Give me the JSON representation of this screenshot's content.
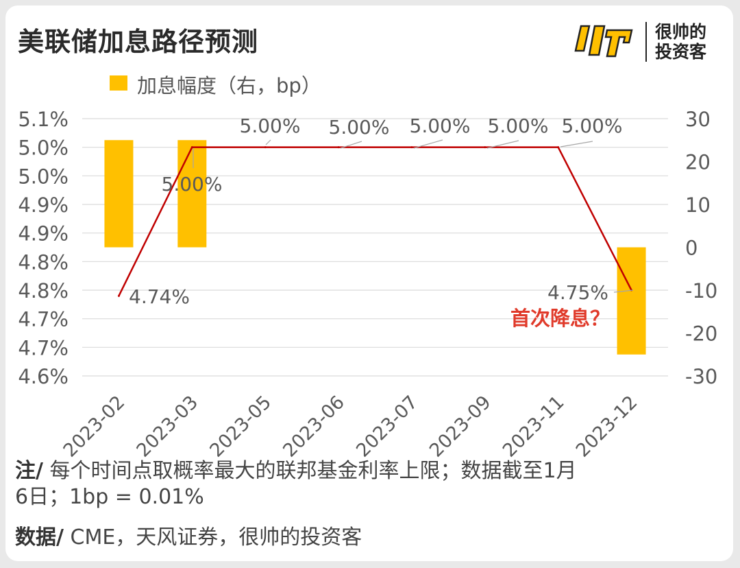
{
  "title": "美联储加息路径预测",
  "brand": {
    "line1": "很帅的",
    "line2": "投资客",
    "logo_color": "#FFC000"
  },
  "legend": {
    "label": "加息幅度（右，bp）"
  },
  "note": {
    "label": "注/",
    "text_line1": " 每个时间点取概率最大的联邦基金利率上限；数据截至1月",
    "text_line2": "6日；1bp = 0.01%"
  },
  "source": {
    "label": "数据/",
    "text": " CME，天风证券，很帅的投资客"
  },
  "chart_data": {
    "type": "bar+line",
    "categories": [
      "2023-02",
      "2023-03",
      "2023-05",
      "2023-06",
      "2023-07",
      "2023-09",
      "2023-11",
      "2023-12"
    ],
    "bar_series": {
      "name": "加息幅度（右，bp）",
      "values": [
        25,
        25,
        null,
        null,
        null,
        null,
        null,
        -25
      ],
      "color": "#FFC000",
      "axis": "right"
    },
    "line_series": {
      "values": [
        4.74,
        5.0,
        5.0,
        5.0,
        5.0,
        5.0,
        5.0,
        4.75
      ],
      "labels": [
        "4.74%",
        "5.00%",
        "5.00%",
        "5.00%",
        "5.00%",
        "5.00%",
        "5.00%",
        "4.75%"
      ],
      "color": "#C00000",
      "axis": "left"
    },
    "y_left": {
      "ticks": [
        "5.1%",
        "5.0%",
        "5.0%",
        "4.9%",
        "4.9%",
        "4.8%",
        "4.8%",
        "4.7%",
        "4.7%",
        "4.6%"
      ],
      "range": [
        4.6,
        5.05
      ]
    },
    "y_right": {
      "ticks": [
        "30",
        "20",
        "10",
        "0",
        "-10",
        "-20",
        "-30"
      ],
      "range": [
        -30,
        30
      ]
    },
    "grid": true,
    "annotation": {
      "text": "首次降息？",
      "color": "#E03A2A"
    }
  }
}
